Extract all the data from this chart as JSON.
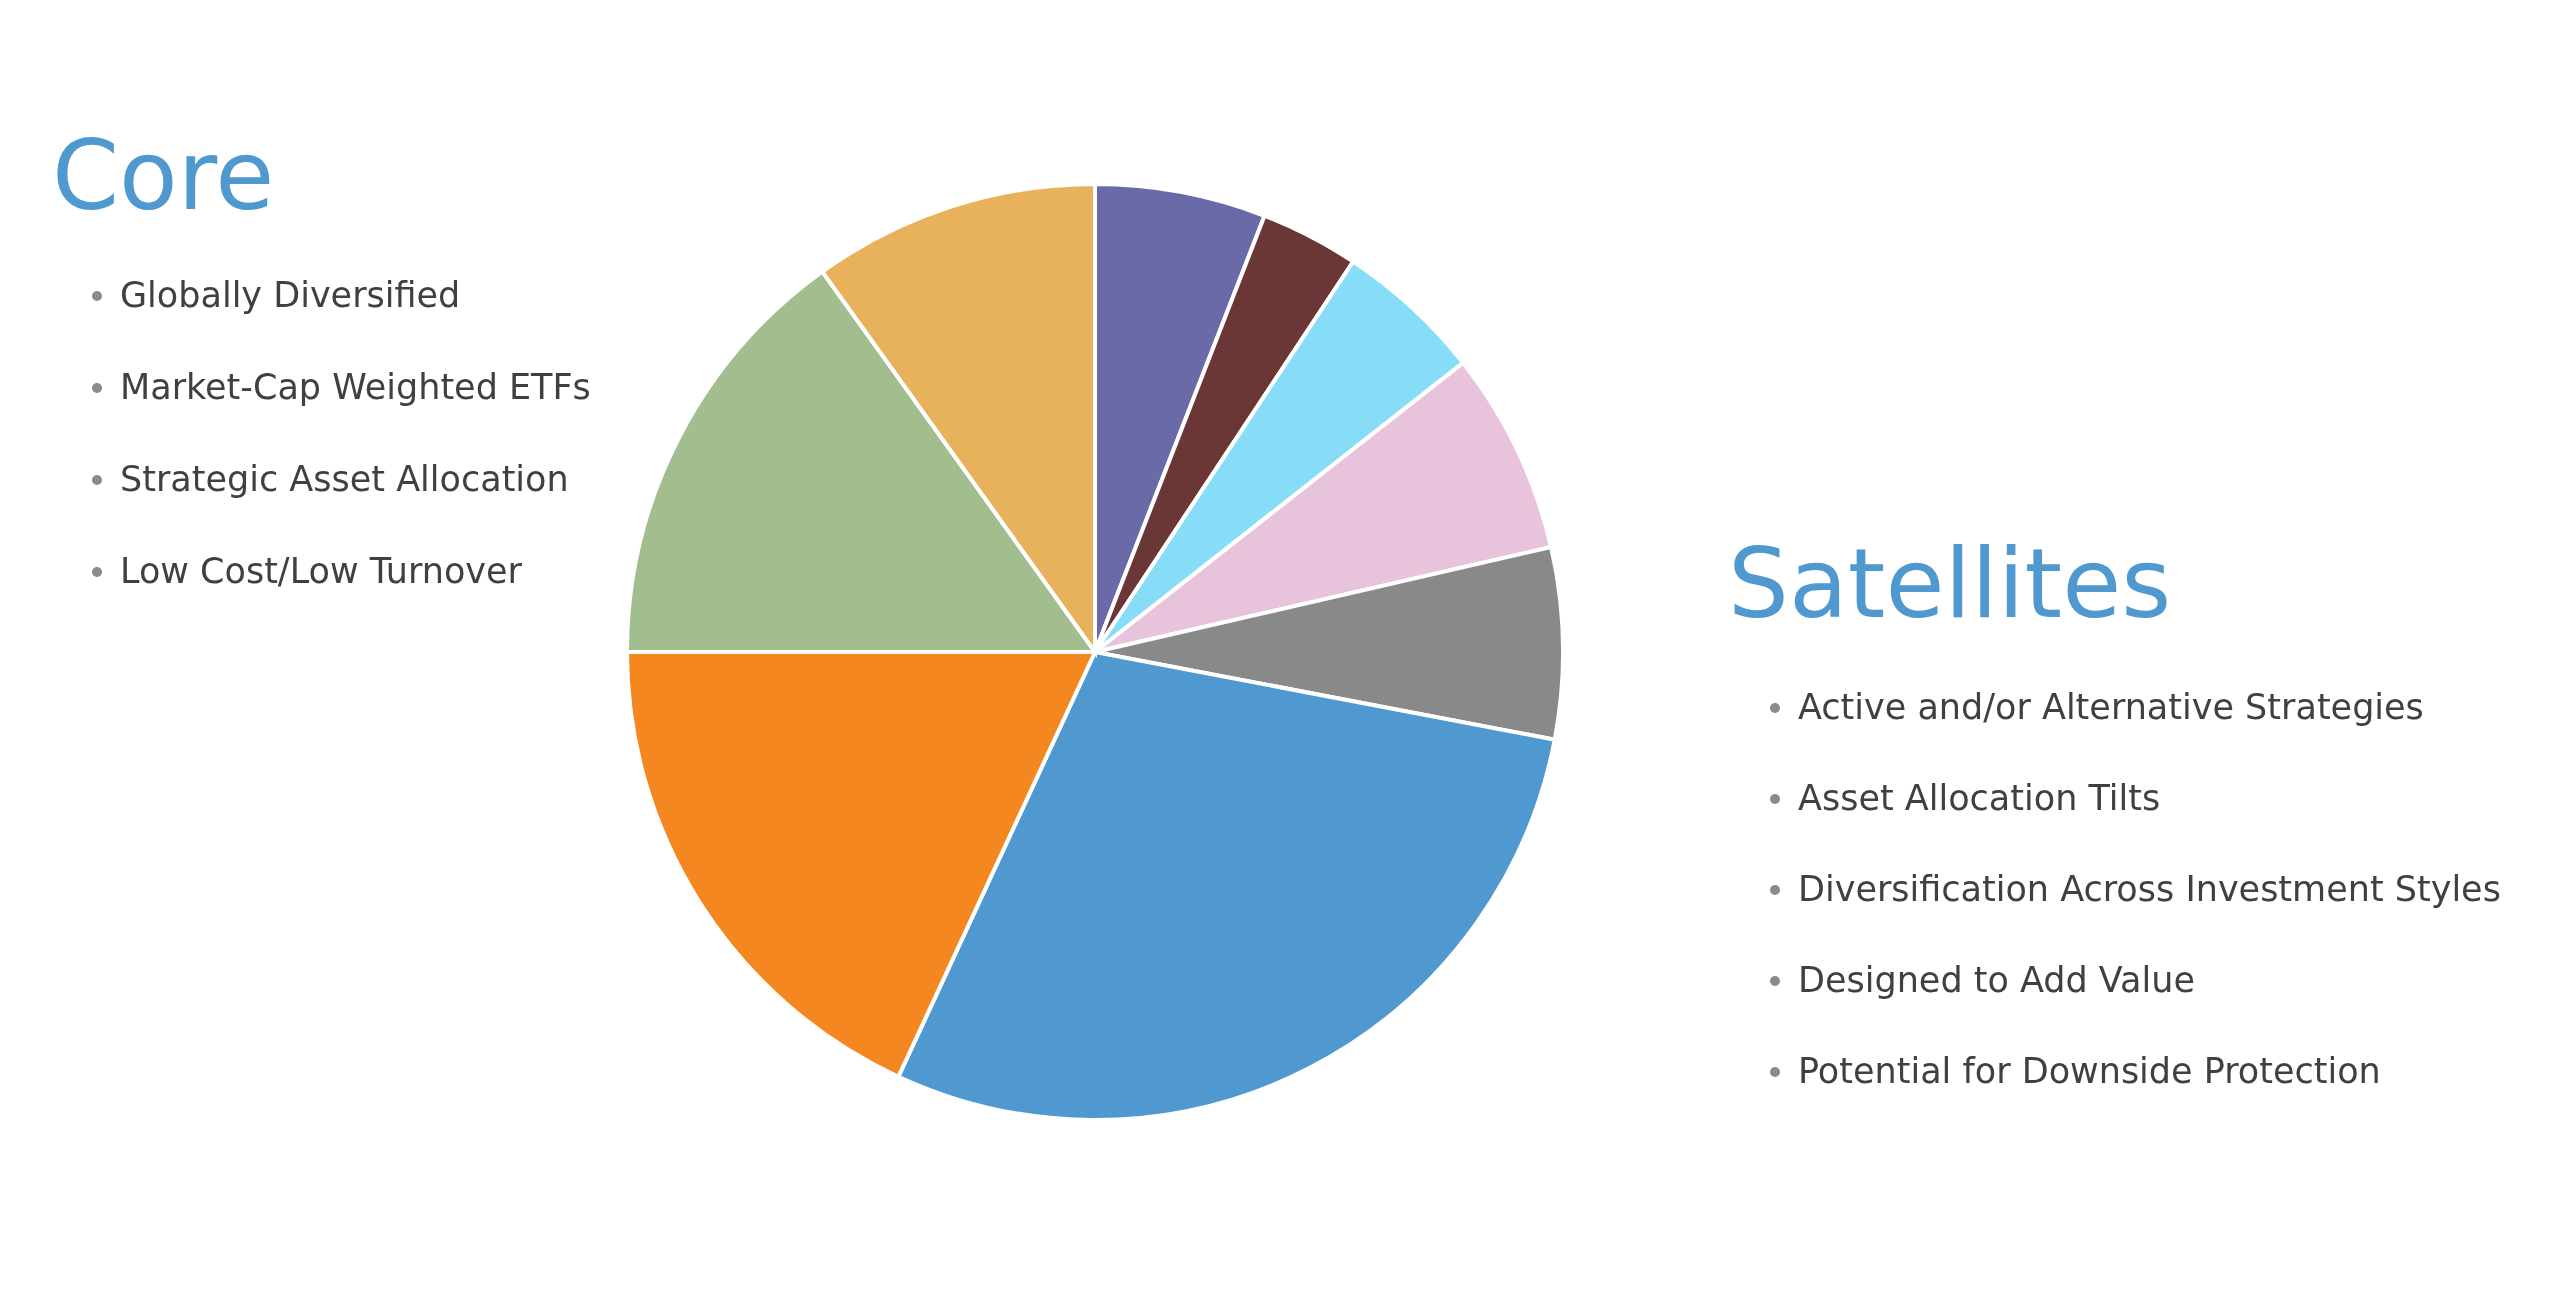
{
  "chart_data": {
    "type": "pie",
    "categories": [
      null,
      null,
      null,
      null,
      null,
      null,
      null,
      null,
      null
    ],
    "values": [
      5.9,
      3.4,
      5.1,
      7.0,
      6.6,
      28.9,
      18.1,
      15.1,
      9.9
    ],
    "colors": [
      "#6b6aa8",
      "#6b3636",
      "#87dcf8",
      "#e8c4dc",
      "#898989",
      "#4f98d0",
      "#f58721",
      "#a2bd8e",
      "#e8b25c"
    ],
    "annotations": [
      "Core",
      "Globally Diversified",
      "Market-Cap Weighted ETFs",
      "Strategic Asset Allocation",
      "Low Cost/Low Turnover",
      "Satellites",
      "Active and/or Alternative Strategies",
      "Asset Allocation Tilts",
      "Diversification Across Investment Styles",
      "Designed to Add Value",
      "Potential for Downside Protection"
    ],
    "legend": false
  }
}
